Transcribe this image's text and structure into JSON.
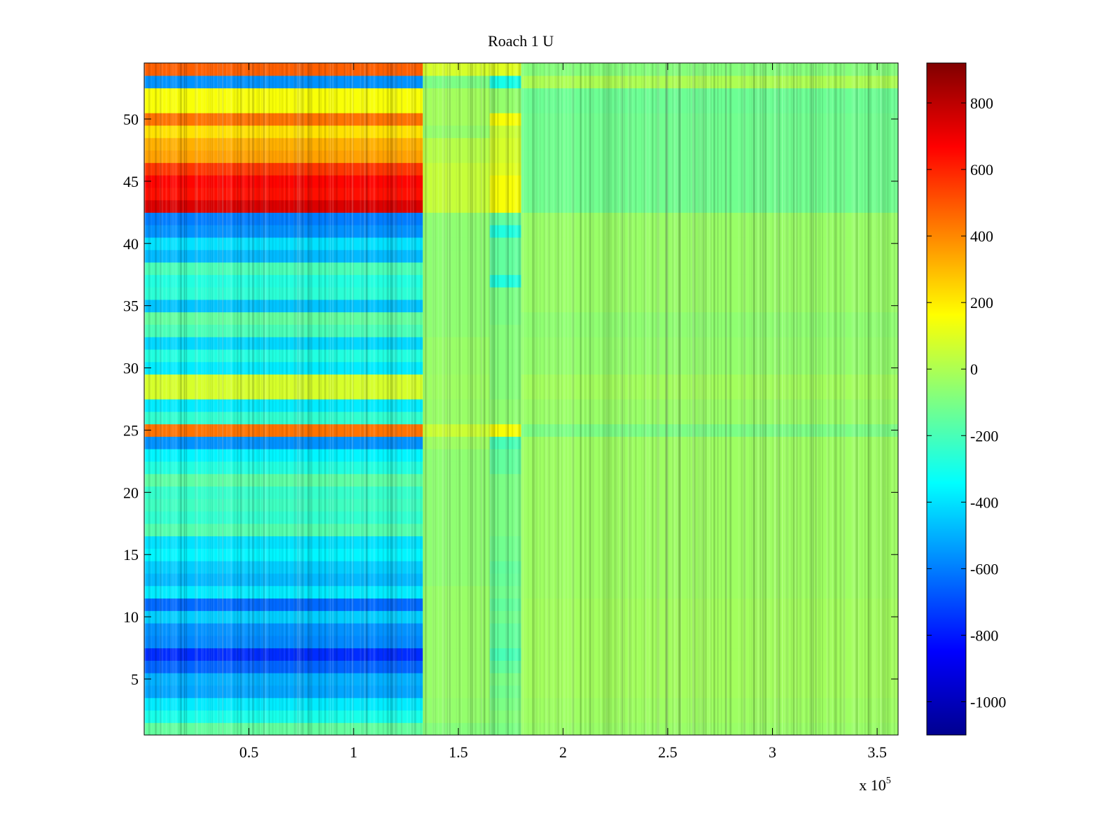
{
  "figure": {
    "title": "Roach 1 U",
    "x_exponent_label": "x 10",
    "x_exponent_power": "5"
  },
  "colors": {
    "jet_stops": [
      "#00008F",
      "#0000FF",
      "#0080FF",
      "#00FFFF",
      "#80FF80",
      "#FFFF00",
      "#FF8000",
      "#FF0000",
      "#800000"
    ]
  },
  "chart_data": {
    "type": "heatmap",
    "title": "Roach 1 U",
    "xlabel": "",
    "ylabel": "",
    "x_scale_note": "x 10^5",
    "xlim": [
      0,
      3.6
    ],
    "ylim": [
      0.5,
      54.5
    ],
    "xticks": [
      0.5,
      1,
      1.5,
      2,
      2.5,
      3,
      3.5
    ],
    "xtick_labels": [
      "0.5",
      "1",
      "1.5",
      "2",
      "2.5",
      "3",
      "3.5"
    ],
    "yticks": [
      5,
      10,
      15,
      20,
      25,
      30,
      35,
      40,
      45,
      50
    ],
    "ytick_labels": [
      "5",
      "10",
      "15",
      "20",
      "25",
      "30",
      "35",
      "40",
      "45",
      "50"
    ],
    "colorbar": {
      "colormap": "jet",
      "clim": [
        -1100,
        920
      ],
      "ticks": [
        -1000,
        -800,
        -600,
        -400,
        -200,
        0,
        200,
        400,
        600,
        800
      ],
      "tick_labels": [
        "-1000",
        "-800",
        "-600",
        "-400",
        "-200",
        "0",
        "200",
        "400",
        "600",
        "800"
      ]
    },
    "rows": [
      1,
      2,
      3,
      4,
      5,
      6,
      7,
      8,
      9,
      10,
      11,
      12,
      13,
      14,
      15,
      16,
      17,
      18,
      19,
      20,
      21,
      22,
      23,
      24,
      25,
      26,
      27,
      28,
      29,
      30,
      31,
      32,
      33,
      34,
      35,
      36,
      37,
      38,
      39,
      40,
      41,
      42,
      43,
      44,
      45,
      46,
      47,
      48,
      49,
      50,
      51,
      52,
      53,
      54
    ],
    "x_segments": [
      0,
      1.33,
      1.65,
      1.8,
      3.6
    ],
    "values": [
      [
        -150,
        -80,
        -100,
        -40
      ],
      [
        -300,
        -50,
        -80,
        -30
      ],
      [
        -380,
        -50,
        -100,
        -30
      ],
      [
        -520,
        -40,
        -120,
        -20
      ],
      [
        -500,
        -40,
        -100,
        -20
      ],
      [
        -650,
        -40,
        -150,
        -20
      ],
      [
        -760,
        -40,
        -200,
        -20
      ],
      [
        -580,
        -40,
        -150,
        -20
      ],
      [
        -560,
        -40,
        -150,
        -20
      ],
      [
        -440,
        -40,
        -120,
        -20
      ],
      [
        -640,
        -40,
        -150,
        -20
      ],
      [
        -380,
        -40,
        -120,
        -30
      ],
      [
        -480,
        -60,
        -140,
        -30
      ],
      [
        -440,
        -60,
        -150,
        -30
      ],
      [
        -360,
        -60,
        -120,
        -30
      ],
      [
        -400,
        -60,
        -120,
        -30
      ],
      [
        -180,
        -60,
        -100,
        -30
      ],
      [
        -250,
        -60,
        -100,
        -30
      ],
      [
        -220,
        -60,
        -100,
        -30
      ],
      [
        -240,
        -60,
        -100,
        -30
      ],
      [
        -160,
        -60,
        -100,
        -30
      ],
      [
        -280,
        -60,
        -150,
        -30
      ],
      [
        -360,
        -60,
        -150,
        -30
      ],
      [
        -560,
        -30,
        -200,
        -30
      ],
      [
        440,
        60,
        150,
        -100
      ],
      [
        -250,
        -40,
        -60,
        -40
      ],
      [
        -380,
        -40,
        -60,
        -40
      ],
      [
        80,
        -30,
        -80,
        -20
      ],
      [
        80,
        -30,
        -80,
        -20
      ],
      [
        -380,
        -40,
        -80,
        -50
      ],
      [
        -280,
        -40,
        -80,
        -50
      ],
      [
        -420,
        -40,
        -80,
        -50
      ],
      [
        -200,
        -60,
        -80,
        -60
      ],
      [
        -150,
        -60,
        -100,
        -60
      ],
      [
        -460,
        -60,
        -100,
        -40
      ],
      [
        -260,
        -60,
        -100,
        -40
      ],
      [
        -280,
        -60,
        -280,
        -40
      ],
      [
        -200,
        -60,
        -150,
        -40
      ],
      [
        -480,
        -60,
        -150,
        -40
      ],
      [
        -400,
        -60,
        -150,
        -40
      ],
      [
        -560,
        -60,
        -280,
        -40
      ],
      [
        -600,
        -60,
        -150,
        -40
      ],
      [
        740,
        50,
        150,
        -120
      ],
      [
        640,
        50,
        150,
        -120
      ],
      [
        660,
        50,
        150,
        -120
      ],
      [
        560,
        50,
        100,
        -120
      ],
      [
        350,
        20,
        80,
        -120
      ],
      [
        320,
        20,
        80,
        -120
      ],
      [
        220,
        -50,
        60,
        -120
      ],
      [
        440,
        -20,
        150,
        -120
      ],
      [
        150,
        -20,
        -50,
        -130
      ],
      [
        150,
        -20,
        -50,
        -130
      ],
      [
        -560,
        -100,
        -300,
        0
      ],
      [
        480,
        80,
        100,
        -80
      ]
    ]
  }
}
